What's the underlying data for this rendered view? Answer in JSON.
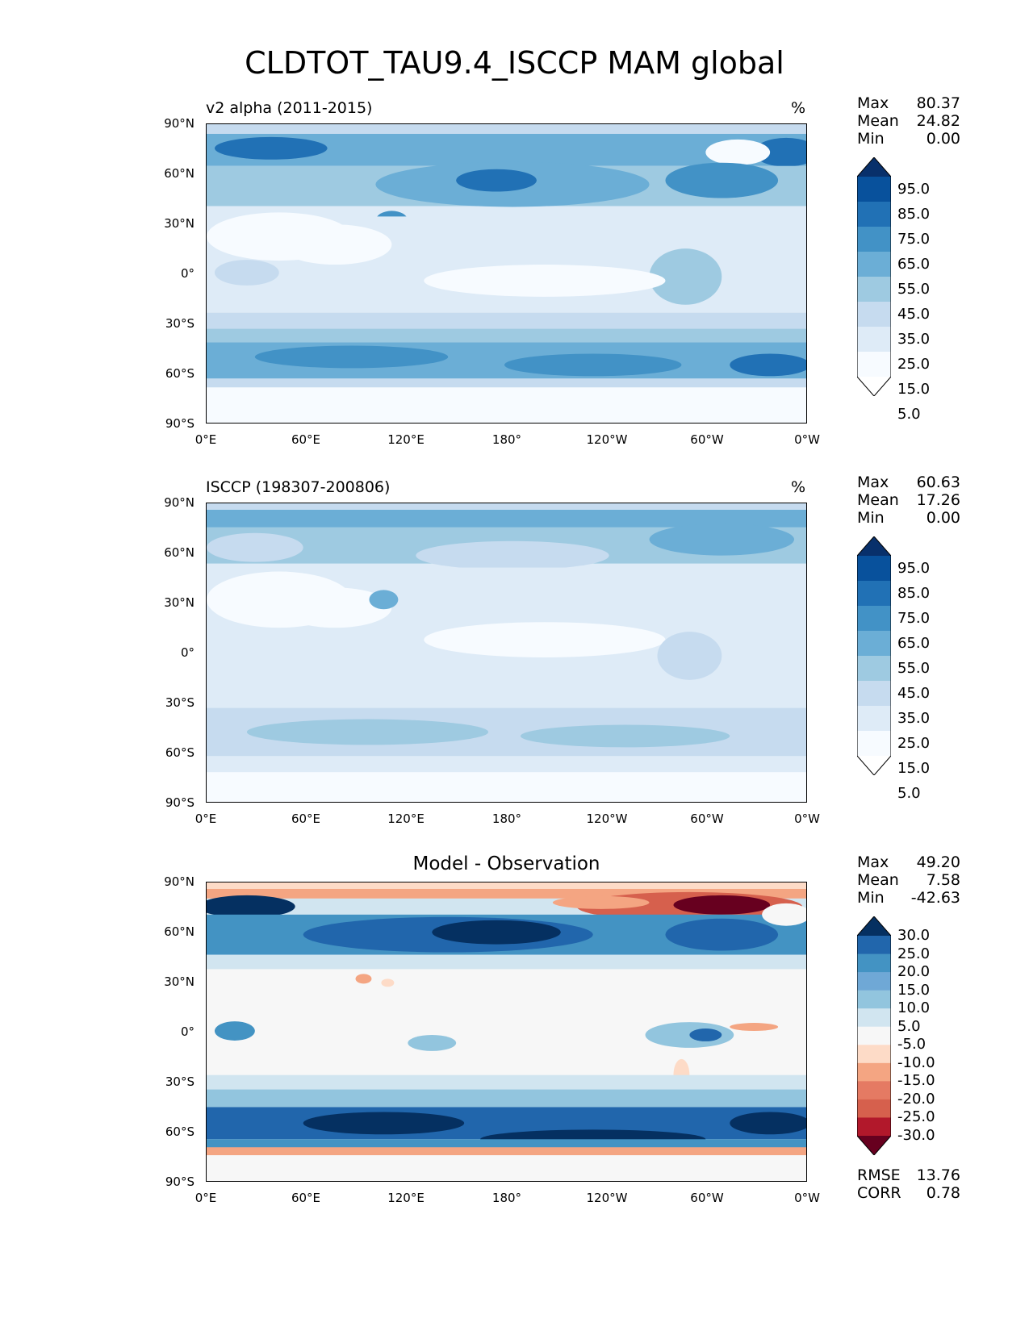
{
  "figure_title": "CLDTOT_TAU9.4_ISCCP MAM global",
  "x_ticks": [
    "0°E",
    "60°E",
    "120°E",
    "180°",
    "120°W",
    "60°W",
    "0°W"
  ],
  "y_ticks": [
    "90°N",
    "60°N",
    "30°N",
    "0°",
    "30°S",
    "60°S",
    "90°S"
  ],
  "panels": [
    {
      "title_left": "v2 alpha (2011-2015)",
      "units": "%",
      "stats": {
        "max_label": "Max",
        "max": "80.37",
        "mean_label": "Mean",
        "mean": "24.82",
        "min_label": "Min",
        "min": "0.00"
      },
      "colorbar_labels": [
        "95.0",
        "85.0",
        "75.0",
        "65.0",
        "55.0",
        "45.0",
        "35.0",
        "25.0",
        "15.0",
        "5.0"
      ],
      "colorbar_colors": [
        "#08306b",
        "#08519c",
        "#2171b5",
        "#4292c6",
        "#6baed6",
        "#9ecae1",
        "#c6dbef",
        "#deebf7",
        "#f7fbff",
        "#ffffff"
      ]
    },
    {
      "title_left": "ISCCP (198307-200806)",
      "units": "%",
      "stats": {
        "max_label": "Max",
        "max": "60.63",
        "mean_label": "Mean",
        "mean": "17.26",
        "min_label": "Min",
        "min": "0.00"
      },
      "colorbar_labels": [
        "95.0",
        "85.0",
        "75.0",
        "65.0",
        "55.0",
        "45.0",
        "35.0",
        "25.0",
        "15.0",
        "5.0"
      ],
      "colorbar_colors": [
        "#08306b",
        "#08519c",
        "#2171b5",
        "#4292c6",
        "#6baed6",
        "#9ecae1",
        "#c6dbef",
        "#deebf7",
        "#f7fbff",
        "#ffffff"
      ]
    },
    {
      "title_center": "Model - Observation",
      "stats": {
        "max_label": "Max",
        "max": "49.20",
        "mean_label": "Mean",
        "mean": "7.58",
        "min_label": "Min",
        "min": "-42.63"
      },
      "extra_stats": {
        "rmse_label": "RMSE",
        "rmse": "13.76",
        "corr_label": "CORR",
        "corr": "0.78"
      },
      "colorbar_labels": [
        "30.0",
        "25.0",
        "20.0",
        "15.0",
        "10.0",
        "5.0",
        "-5.0",
        "-10.0",
        "-15.0",
        "-20.0",
        "-25.0",
        "-30.0"
      ],
      "colorbar_colors": [
        "#053061",
        "#2166ac",
        "#4393c3",
        "#6fa8d6",
        "#92c5de",
        "#d1e5f0",
        "#f7f7f7",
        "#fddbc7",
        "#f4a582",
        "#e57a63",
        "#d6604d",
        "#b2182b",
        "#67001f"
      ]
    }
  ]
}
